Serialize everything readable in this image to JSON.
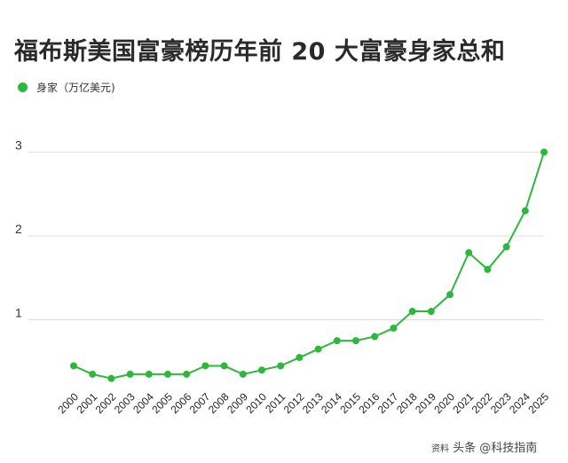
{
  "page": {
    "title": "福布斯美国富豪榜历年前 20 大富豪身家总和",
    "legend_label": "身家（万亿美元)",
    "watermark_prefix": "资料",
    "watermark_text": "头条 @科技指南",
    "series_color": "#2db83d",
    "grid_color": "#dddddd"
  },
  "chart_data": {
    "type": "line",
    "title": "福布斯美国富豪榜历年前 20 大富豪身家总和",
    "xlabel": "",
    "ylabel": "",
    "legend": [
      "身家（万亿美元)"
    ],
    "legend_position": "top-left",
    "grid": true,
    "ylim": [
      0,
      3
    ],
    "yticks": [
      1,
      2,
      3
    ],
    "categories": [
      "2000",
      "2001",
      "2002",
      "2003",
      "2004",
      "2005",
      "2006",
      "2007",
      "2008",
      "2009",
      "2010",
      "2011",
      "2012",
      "2013",
      "2014",
      "2015",
      "2016",
      "2017",
      "2018",
      "2019",
      "2020",
      "2021",
      "2022",
      "2023",
      "2024",
      "2025"
    ],
    "series": [
      {
        "name": "身家（万亿美元)",
        "values": [
          0.45,
          0.35,
          0.3,
          0.35,
          0.35,
          0.35,
          0.35,
          0.45,
          0.45,
          0.35,
          0.4,
          0.45,
          0.55,
          0.65,
          0.75,
          0.75,
          0.8,
          0.9,
          1.1,
          1.1,
          1.3,
          1.8,
          1.6,
          1.87,
          2.3,
          3.0
        ]
      }
    ]
  }
}
